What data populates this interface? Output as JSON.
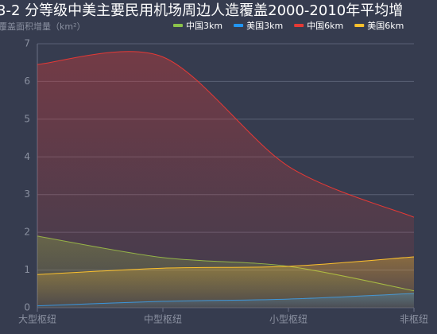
{
  "chart_data": {
    "type": "area",
    "title": "3-2 分等级中美主要民用机场周边人造覆盖2000-2010年平均增",
    "y_label": "覆盖面积增量（km²）",
    "categories": [
      "大型枢纽",
      "中型枢纽",
      "小型枢纽",
      "非枢纽"
    ],
    "series": [
      {
        "name": "中国3km",
        "color": "#8bc34a",
        "values": [
          1.9,
          1.33,
          1.1,
          0.45
        ]
      },
      {
        "name": "美国3km",
        "color": "#2196f3",
        "values": [
          0.05,
          0.17,
          0.23,
          0.38
        ]
      },
      {
        "name": "中国6km",
        "color": "#e53935",
        "values": [
          6.45,
          6.65,
          3.75,
          2.4
        ]
      },
      {
        "name": "美国6km",
        "color": "#fbc02d",
        "values": [
          0.88,
          1.05,
          1.1,
          1.35
        ]
      }
    ],
    "ylim": [
      0,
      7
    ],
    "yticks": [
      0,
      1,
      2,
      3,
      4,
      5,
      6,
      7
    ],
    "grid": true
  }
}
